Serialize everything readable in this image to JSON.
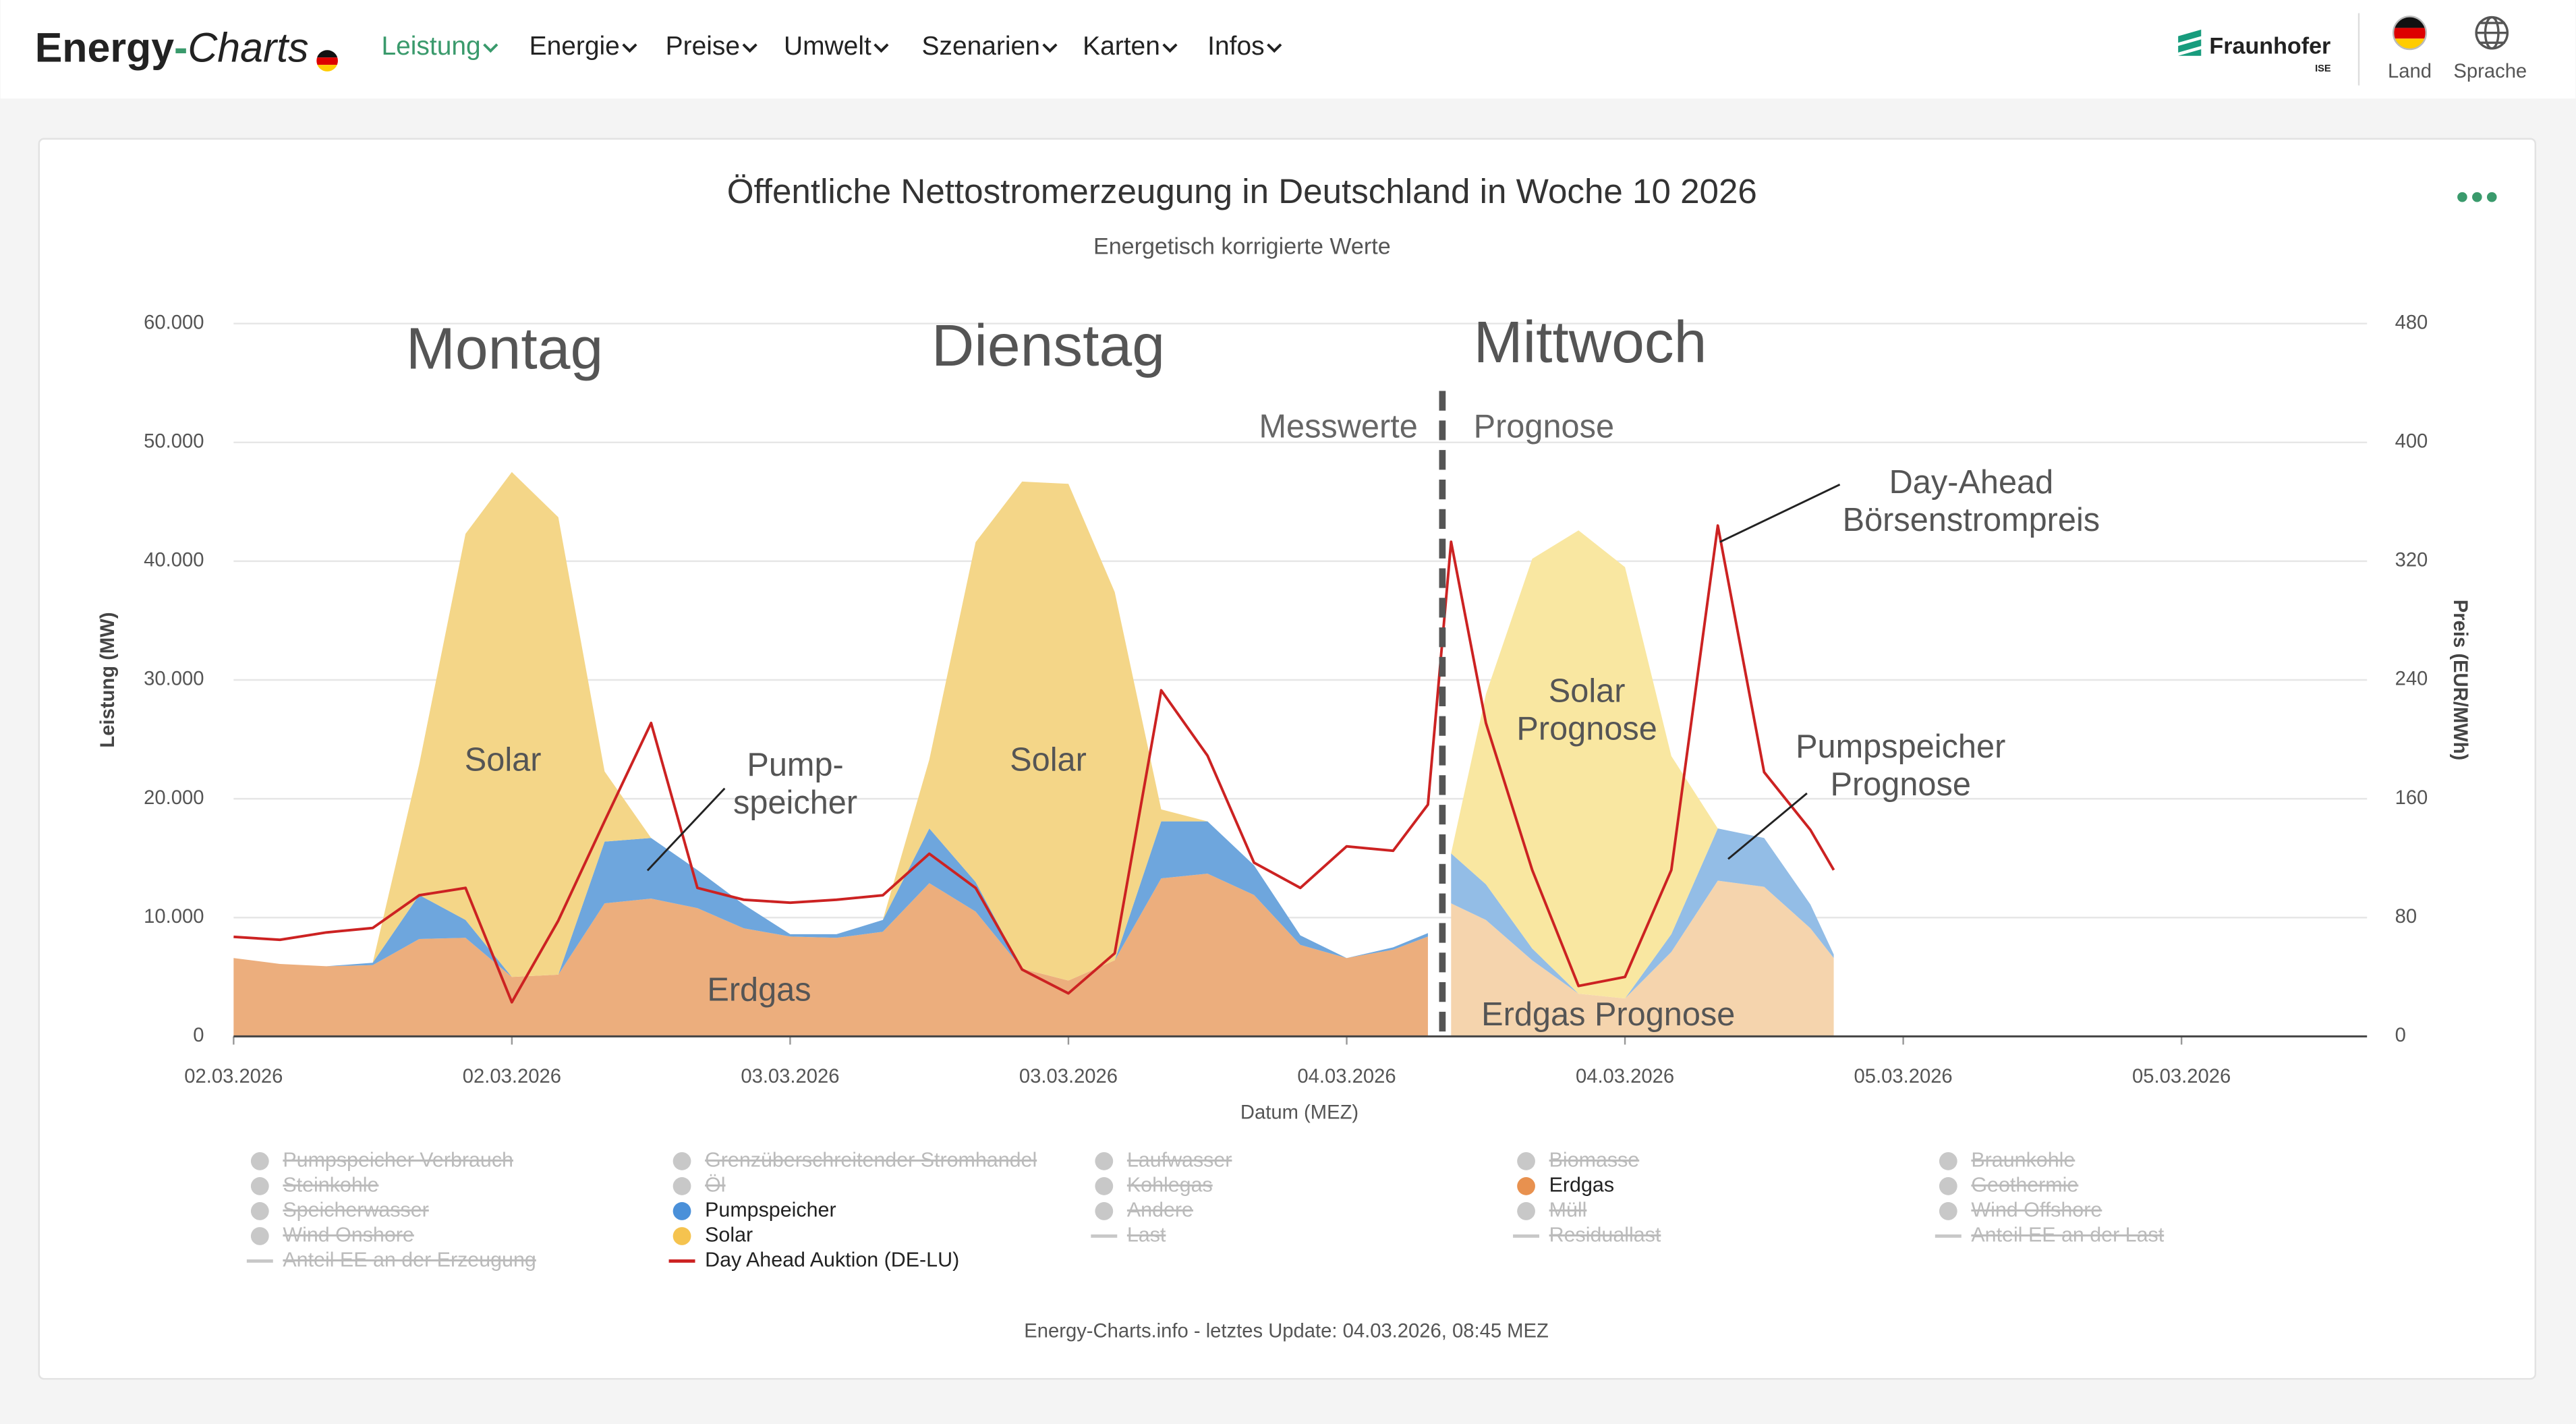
{
  "header": {
    "logo": [
      "Energy",
      "-",
      "Charts"
    ],
    "menu": [
      "Leistung",
      "Energie",
      "Preise",
      "Umwelt",
      "Szenarien",
      "Karten",
      "Infos"
    ],
    "active_menu": 0,
    "brand": "Fraunhofer",
    "brand_sub": "ISE",
    "actions": [
      "Land",
      "Sprache"
    ]
  },
  "chart_data": {
    "type": "area",
    "title": "Öffentliche Nettostromerzeugung in Deutschland in Woche 10 2026",
    "subtitle": "Energetisch korrigierte Werte",
    "xlabel": "Datum (MEZ)",
    "ylabel": "Leistung (MW)",
    "y2label": "Preis (EUR/MWh)",
    "x": [
      0,
      2,
      4,
      6,
      8,
      10,
      12,
      14,
      16,
      18,
      20,
      22,
      24,
      26,
      28,
      30,
      32,
      34,
      36,
      38,
      40,
      42,
      44,
      46,
      48,
      50,
      51.5,
      52.5,
      54,
      56,
      58,
      60,
      62,
      64,
      66,
      68,
      69
    ],
    "xlim": [
      0,
      92
    ],
    "xticks": [
      {
        "value": 0,
        "label": "02.03.2026"
      },
      {
        "value": 12,
        "label": "02.03.2026"
      },
      {
        "value": 24,
        "label": "03.03.2026"
      },
      {
        "value": 36,
        "label": "03.03.2026"
      },
      {
        "value": 48,
        "label": "04.03.2026"
      },
      {
        "value": 60,
        "label": "04.03.2026"
      },
      {
        "value": 72,
        "label": "05.03.2026"
      },
      {
        "value": 84,
        "label": "05.03.2026"
      }
    ],
    "ylim": [
      0,
      60000
    ],
    "yticks": [
      0,
      {
        "value": 10000,
        "label": "10.000"
      },
      {
        "value": 20000,
        "label": "20.000"
      },
      {
        "value": 30000,
        "label": "30.000"
      },
      {
        "value": 40000,
        "label": "40.000"
      },
      {
        "value": 50000,
        "label": "50.000"
      },
      {
        "value": 60000,
        "label": "60.000"
      }
    ],
    "y2lim": [
      0,
      480
    ],
    "y2ticks": [
      0,
      80,
      160,
      240,
      320,
      400,
      480
    ],
    "grid": true,
    "series": [
      {
        "type": "area",
        "color": "#ecae7d",
        "values": [
          6600,
          6100,
          5900,
          6000,
          8200,
          8300,
          5000,
          5200,
          11200,
          11600,
          10800,
          9100,
          8400,
          8300,
          8800,
          12900,
          10500,
          5700,
          4700,
          6400,
          13300,
          13700,
          11900,
          7700,
          6600,
          7300,
          8400,
          null,
          null,
          null,
          null,
          null,
          null,
          null,
          null,
          null,
          null
        ]
      },
      {
        "type": "area",
        "color": "#6ea6dd",
        "values": [
          0,
          0,
          0,
          200,
          3700,
          1500,
          0,
          0,
          5200,
          5100,
          3200,
          2000,
          200,
          300,
          1000,
          4600,
          2500,
          0,
          0,
          0,
          4800,
          4400,
          2500,
          800,
          0,
          200,
          300,
          null,
          null,
          null,
          null,
          null,
          null,
          null,
          null,
          null,
          null
        ]
      },
      {
        "type": "area",
        "color": "#f4d688",
        "values": [
          0,
          0,
          0,
          0,
          11000,
          32500,
          42500,
          38500,
          5900,
          0,
          0,
          0,
          0,
          0,
          0,
          5800,
          28600,
          41000,
          41800,
          31000,
          1000,
          0,
          0,
          0,
          0,
          0,
          0,
          null,
          null,
          null,
          null,
          null,
          null,
          null,
          null,
          null,
          null
        ]
      },
      {
        "type": "area",
        "color": "#f5d4ad",
        "values": [
          null,
          null,
          null,
          null,
          null,
          null,
          null,
          null,
          null,
          null,
          null,
          null,
          null,
          null,
          null,
          null,
          null,
          null,
          null,
          null,
          null,
          null,
          null,
          null,
          null,
          null,
          null,
          11200,
          9800,
          6400,
          3600,
          3200,
          7100,
          13100,
          12600,
          9100,
          6600
        ]
      },
      {
        "type": "area",
        "color": "#93bde6",
        "values": [
          null,
          null,
          null,
          null,
          null,
          null,
          null,
          null,
          null,
          null,
          null,
          null,
          null,
          null,
          null,
          null,
          null,
          null,
          null,
          null,
          null,
          null,
          null,
          null,
          null,
          null,
          null,
          4200,
          3000,
          1000,
          0,
          0,
          1500,
          4400,
          4100,
          2000,
          300
        ]
      },
      {
        "type": "area",
        "color": "#f9e7a1",
        "values": [
          null,
          null,
          null,
          null,
          null,
          null,
          null,
          null,
          null,
          null,
          null,
          null,
          null,
          null,
          null,
          null,
          null,
          null,
          null,
          null,
          null,
          null,
          null,
          null,
          null,
          null,
          null,
          0,
          16000,
          32800,
          39000,
          36300,
          15000,
          0,
          0,
          0,
          0
        ]
      },
      {
        "type": "line",
        "axis": "y2",
        "color": "#cc2222",
        "values": [
          67,
          65,
          70,
          73,
          95,
          100,
          23,
          78,
          145,
          211,
          100,
          92,
          90,
          92,
          95,
          123,
          100,
          45,
          29,
          56,
          233,
          189,
          117,
          100,
          128,
          125,
          156,
          333,
          211,
          112,
          34,
          40,
          112,
          344,
          178,
          139,
          112
        ]
      }
    ],
    "annotations": {
      "days": [
        "Montag",
        "Dienstag",
        "Mittwoch"
      ],
      "phases": [
        "Messwerte",
        "Prognose"
      ],
      "labels": [
        [
          "Solar"
        ],
        [
          "Solar"
        ],
        [
          "Pump-",
          "speicher"
        ],
        [
          "Erdgas"
        ],
        [
          "Solar",
          "Prognose"
        ],
        [
          "Pumpspeicher",
          "Prognose"
        ],
        [
          "Erdgas Prognose"
        ],
        [
          "Day-Ahead",
          "Börsenstrompreis"
        ]
      ]
    },
    "inactive_color": "#c8c8c8",
    "legend": [
      [
        {
          "name": "Pumpspeicher Verbrauch",
          "symbol": "dot",
          "active": false
        },
        {
          "name": "Steinkohle",
          "symbol": "dot",
          "active": false
        },
        {
          "name": "Speicherwasser",
          "symbol": "dot",
          "active": false
        },
        {
          "name": "Wind Onshore",
          "symbol": "dot",
          "active": false
        },
        {
          "name": "Anteil EE an der Erzeugung",
          "symbol": "line",
          "active": false
        }
      ],
      [
        {
          "name": "Grenzüberschreitender Stromhandel",
          "symbol": "dot",
          "active": false
        },
        {
          "name": "Öl",
          "symbol": "dot",
          "active": false
        },
        {
          "name": "Pumpspeicher",
          "symbol": "dot",
          "active": true,
          "color": "#4a90d9"
        },
        {
          "name": "Solar",
          "symbol": "dot",
          "active": true,
          "color": "#f5c34f"
        },
        {
          "name": "Day Ahead Auktion (DE-LU)",
          "symbol": "line",
          "active": true,
          "color": "#cc2222"
        }
      ],
      [
        {
          "name": "Laufwasser",
          "symbol": "dot",
          "active": false
        },
        {
          "name": "Kohlegas",
          "symbol": "dot",
          "active": false
        },
        {
          "name": "Andere",
          "symbol": "dot",
          "active": false
        },
        {
          "name": "Last",
          "symbol": "line",
          "active": false
        }
      ],
      [
        {
          "name": "Biomasse",
          "symbol": "dot",
          "active": false
        },
        {
          "name": "Erdgas",
          "symbol": "dot",
          "active": true,
          "color": "#e8914f"
        },
        {
          "name": "Müll",
          "symbol": "dot",
          "active": false
        },
        {
          "name": "Residuallast",
          "symbol": "line",
          "active": false
        }
      ],
      [
        {
          "name": "Braunkohle",
          "symbol": "dot",
          "active": false
        },
        {
          "name": "Geothermie",
          "symbol": "dot",
          "active": false
        },
        {
          "name": "Wind Offshore",
          "symbol": "dot",
          "active": false
        },
        {
          "name": "Anteil EE an der Last",
          "symbol": "line",
          "active": false
        }
      ]
    ]
  },
  "footer": "Energy-Charts.info - letztes Update: 04.03.2026, 08:45 MEZ"
}
